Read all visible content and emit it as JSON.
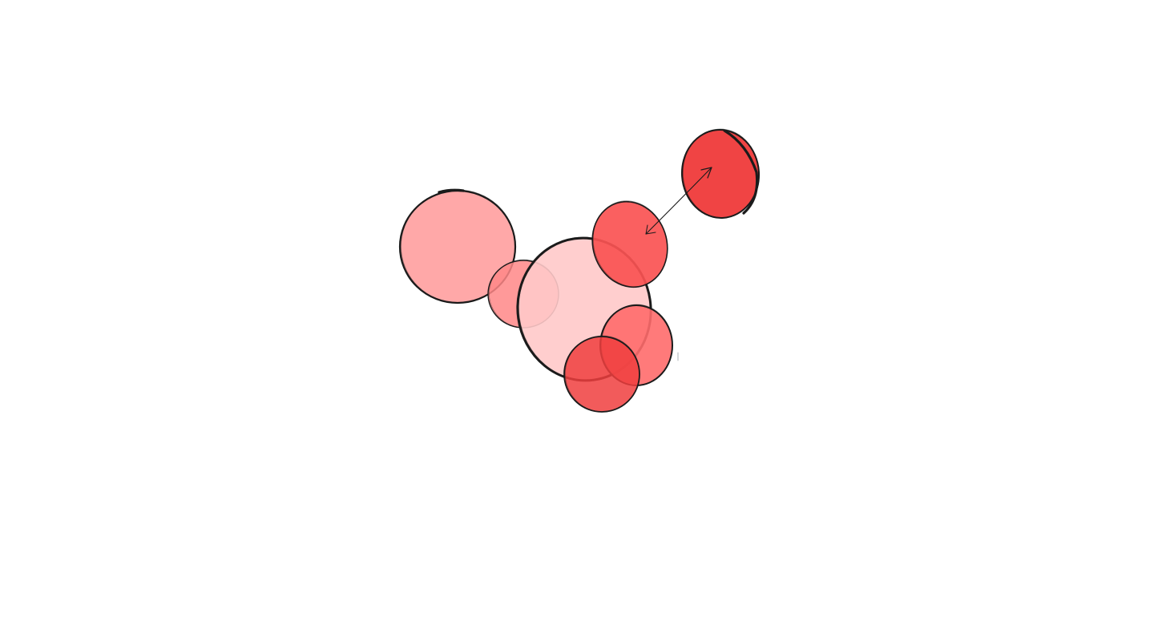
{
  "canvas": {
    "background": "#ffffff"
  },
  "palette": {
    "stroke": "#1b1b1b",
    "fill_lightest": "#ffc9c9",
    "fill_light": "#ffa8a8",
    "fill_medium": "#ff8787",
    "fill_strong": "#ff6b6b",
    "fill_bold": "#fa5252",
    "fill_boldest": "#f03e3e"
  },
  "shapes": [
    {
      "name": "ellipse-left-large",
      "fill": "fill_light",
      "interactable": true
    },
    {
      "name": "ellipse-left-small",
      "fill": "fill_medium",
      "opacity": 0.85,
      "interactable": true
    },
    {
      "name": "ellipse-center-large",
      "fill": "fill_lightest",
      "opacity": 0.9,
      "interactable": true
    },
    {
      "name": "ellipse-tilted",
      "fill": "fill_bold",
      "opacity": 0.92,
      "interactable": true
    },
    {
      "name": "ellipse-lower-right",
      "fill": "fill_strong",
      "opacity": 0.9,
      "interactable": true
    },
    {
      "name": "ellipse-lower",
      "fill": "fill_boldest",
      "opacity": 0.85,
      "interactable": true
    },
    {
      "name": "ellipse-top-right",
      "fill": "fill_boldest",
      "opacity": 0.97,
      "interactable": true
    }
  ],
  "connectors": [
    {
      "name": "double-headed-arrow",
      "from": "ellipse-tilted",
      "to": "ellipse-top-right",
      "heads": "both",
      "interactable": true
    }
  ]
}
